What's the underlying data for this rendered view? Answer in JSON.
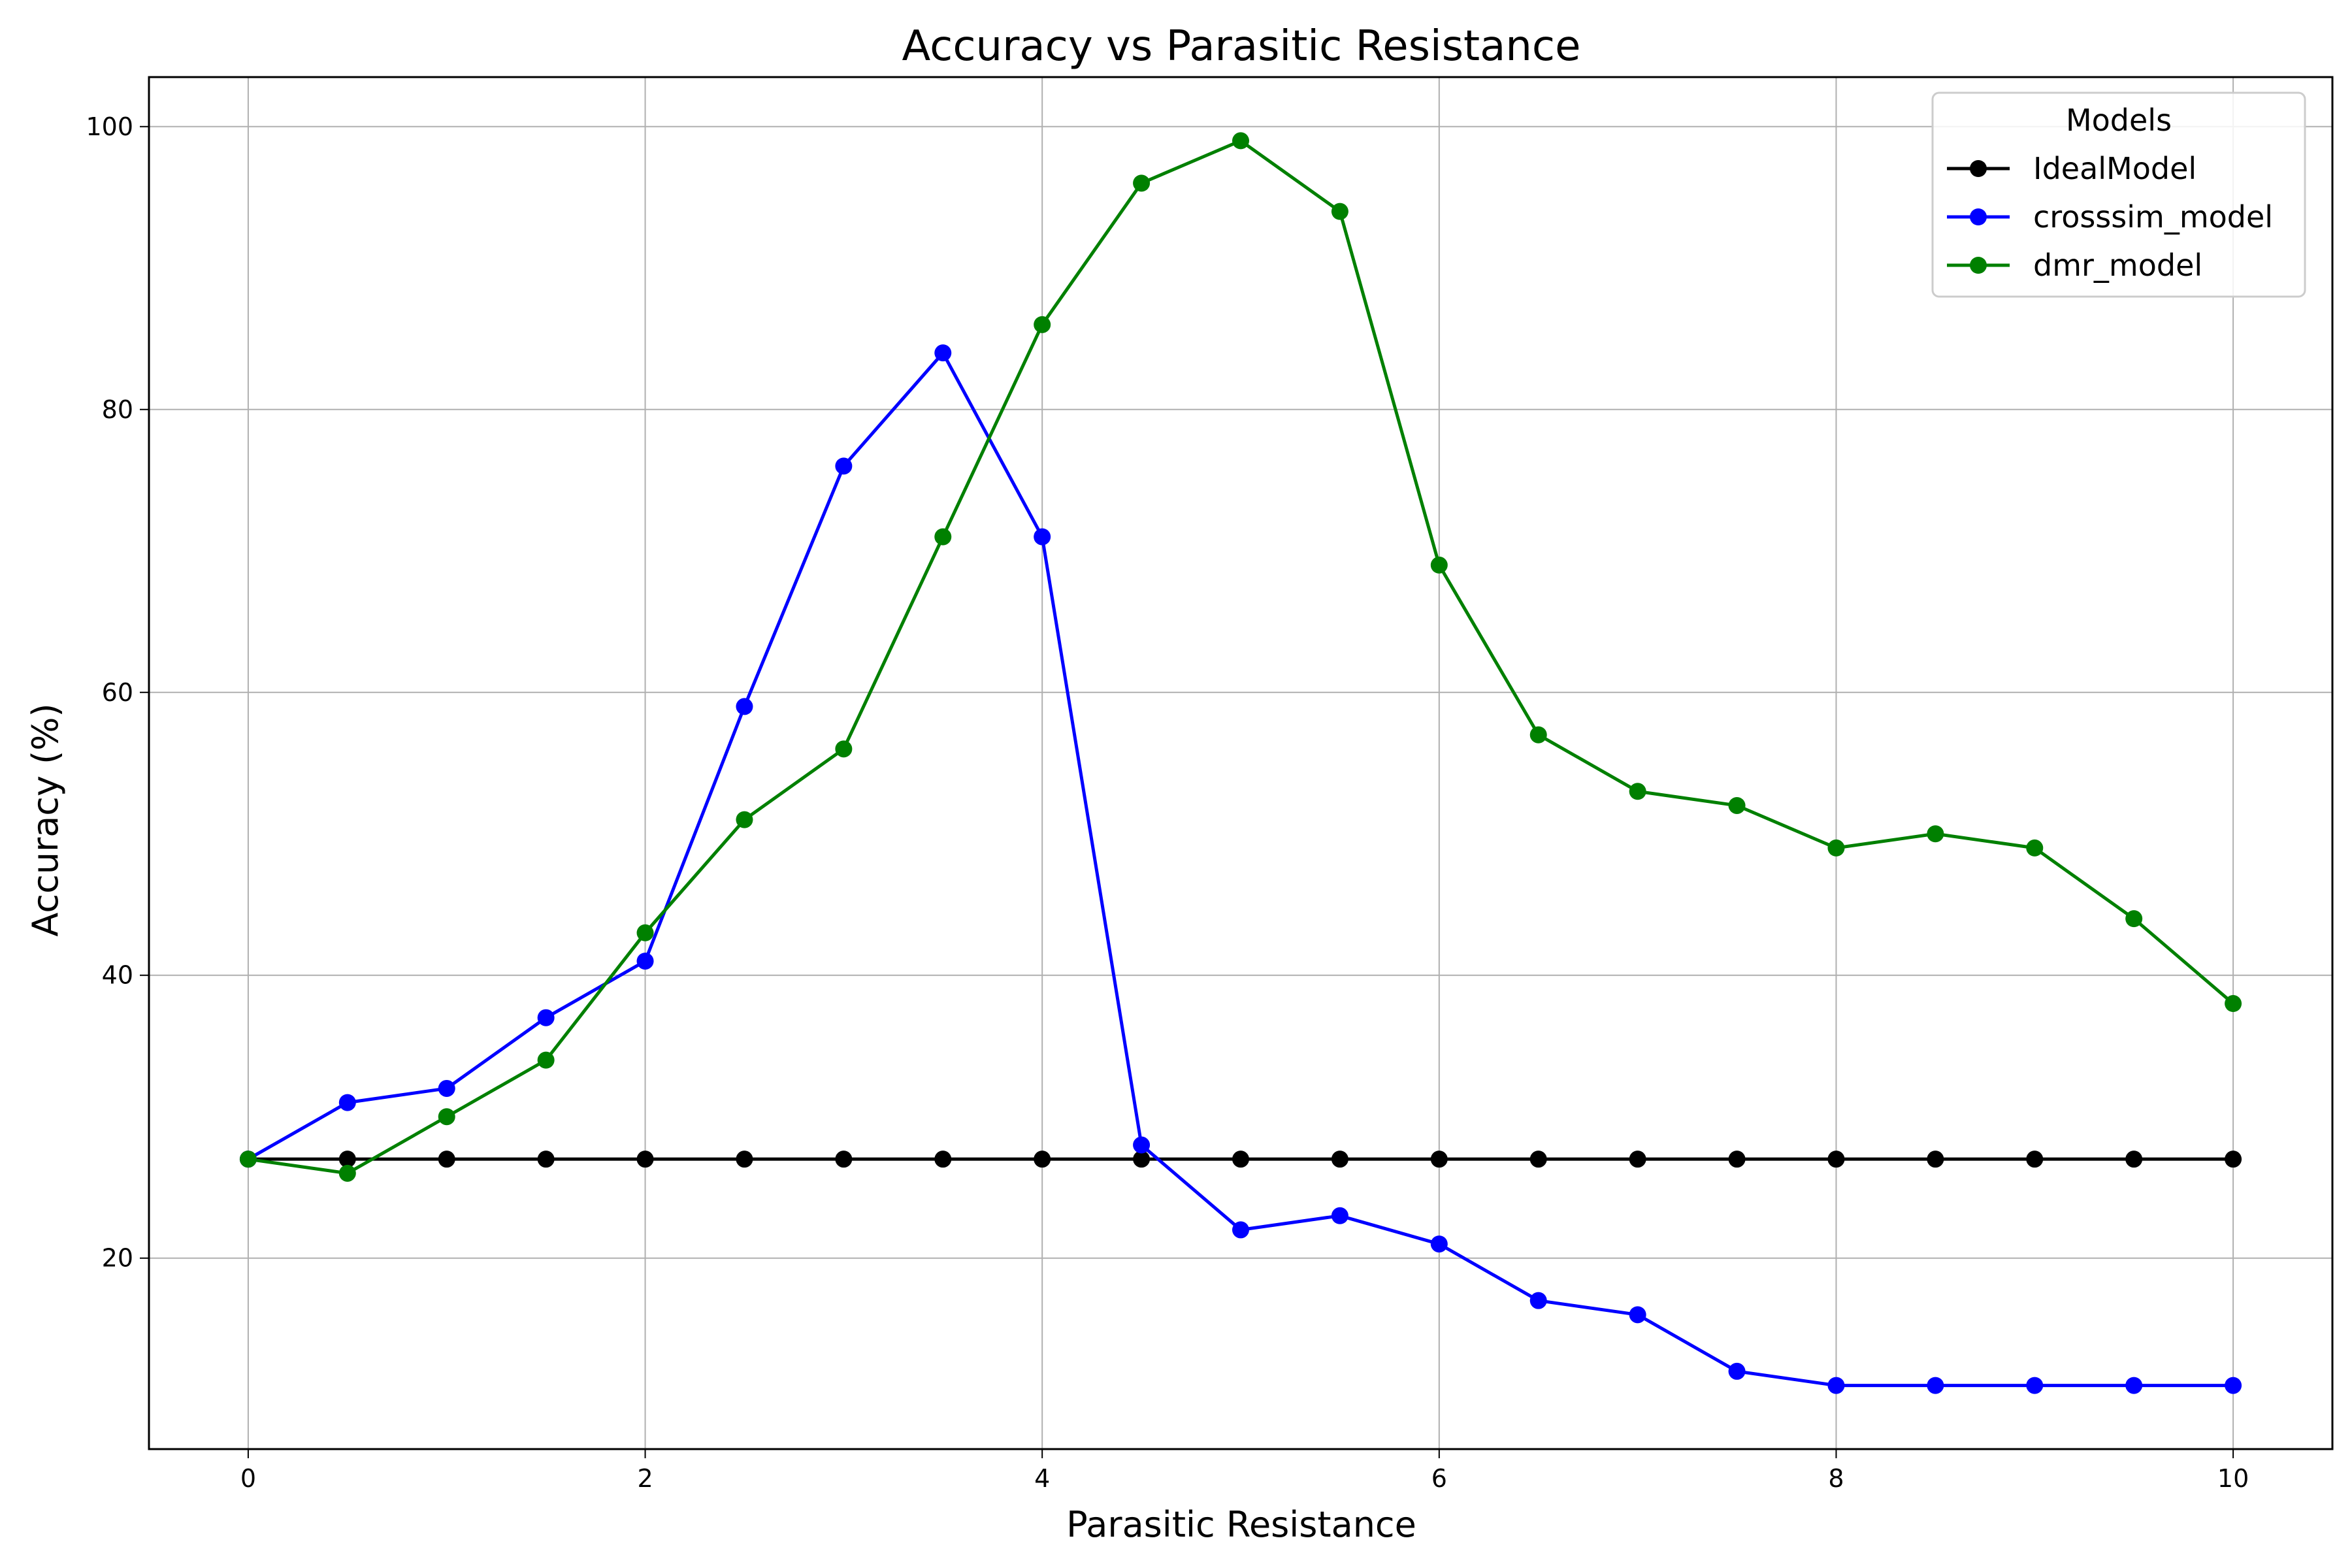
{
  "chart_data": {
    "type": "line",
    "title": "Accuracy vs Parasitic Resistance",
    "xlabel": "Parasitic Resistance",
    "ylabel": "Accuracy (%)",
    "xlim": [
      -0.5,
      10.5
    ],
    "ylim": [
      6.5,
      103.5
    ],
    "xticks": [
      0,
      2,
      4,
      6,
      8,
      10
    ],
    "yticks": [
      20,
      40,
      60,
      80,
      100
    ],
    "grid": true,
    "legend": {
      "title": "Models",
      "position": "top-right"
    },
    "x": [
      0,
      0.5,
      1,
      1.5,
      2,
      2.5,
      3,
      3.5,
      4,
      4.5,
      5,
      5.5,
      6,
      6.5,
      7,
      7.5,
      8,
      8.5,
      9,
      9.5,
      10
    ],
    "series": [
      {
        "name": "IdealModel",
        "color": "#000000",
        "values": [
          27,
          27,
          27,
          27,
          27,
          27,
          27,
          27,
          27,
          27,
          27,
          27,
          27,
          27,
          27,
          27,
          27,
          27,
          27,
          27,
          27
        ]
      },
      {
        "name": "crosssim_model",
        "color": "#0000ff",
        "values": [
          27,
          31,
          32,
          37,
          41,
          59,
          76,
          84,
          71,
          28,
          22,
          23,
          21,
          17,
          16,
          12,
          11,
          11,
          11,
          11,
          11
        ]
      },
      {
        "name": "dmr_model",
        "color": "#008000",
        "values": [
          27,
          26,
          30,
          34,
          43,
          51,
          56,
          71,
          86,
          96,
          99,
          94,
          69,
          57,
          53,
          52,
          49,
          50,
          49,
          44,
          38
        ]
      }
    ]
  }
}
